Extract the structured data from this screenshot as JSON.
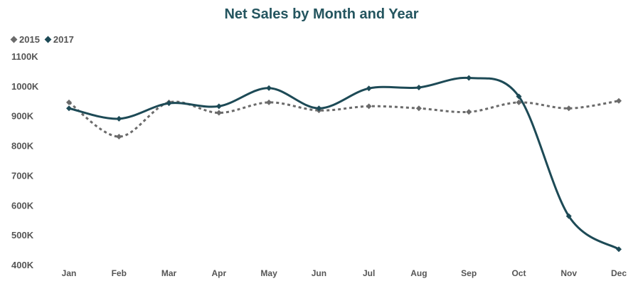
{
  "chart_data": {
    "type": "line",
    "title": "Net Sales by Month and Year",
    "categories": [
      "Jan",
      "Feb",
      "Mar",
      "Apr",
      "May",
      "Jun",
      "Jul",
      "Aug",
      "Sep",
      "Oct",
      "Nov",
      "Dec"
    ],
    "y_tick_labels": [
      "1100K",
      "1000K",
      "900K",
      "800K",
      "700K",
      "600K",
      "500K",
      "400K"
    ],
    "y_ticks": [
      1100000,
      1000000,
      900000,
      800000,
      700000,
      600000,
      500000,
      400000
    ],
    "ylim": [
      400000,
      1100000
    ],
    "grid": false,
    "legend_position": "top-left",
    "series": [
      {
        "name": "2015",
        "color": "#6b6b6b",
        "style": "dotted",
        "values": [
          945000,
          830000,
          945000,
          910000,
          945000,
          918000,
          932000,
          925000,
          913000,
          945000,
          925000,
          950000
        ]
      },
      {
        "name": "2017",
        "color": "#1d4a56",
        "style": "solid",
        "values": [
          925000,
          890000,
          942000,
          932000,
          993000,
          925000,
          992000,
          995000,
          1027000,
          965000,
          563000,
          452000
        ]
      }
    ]
  }
}
